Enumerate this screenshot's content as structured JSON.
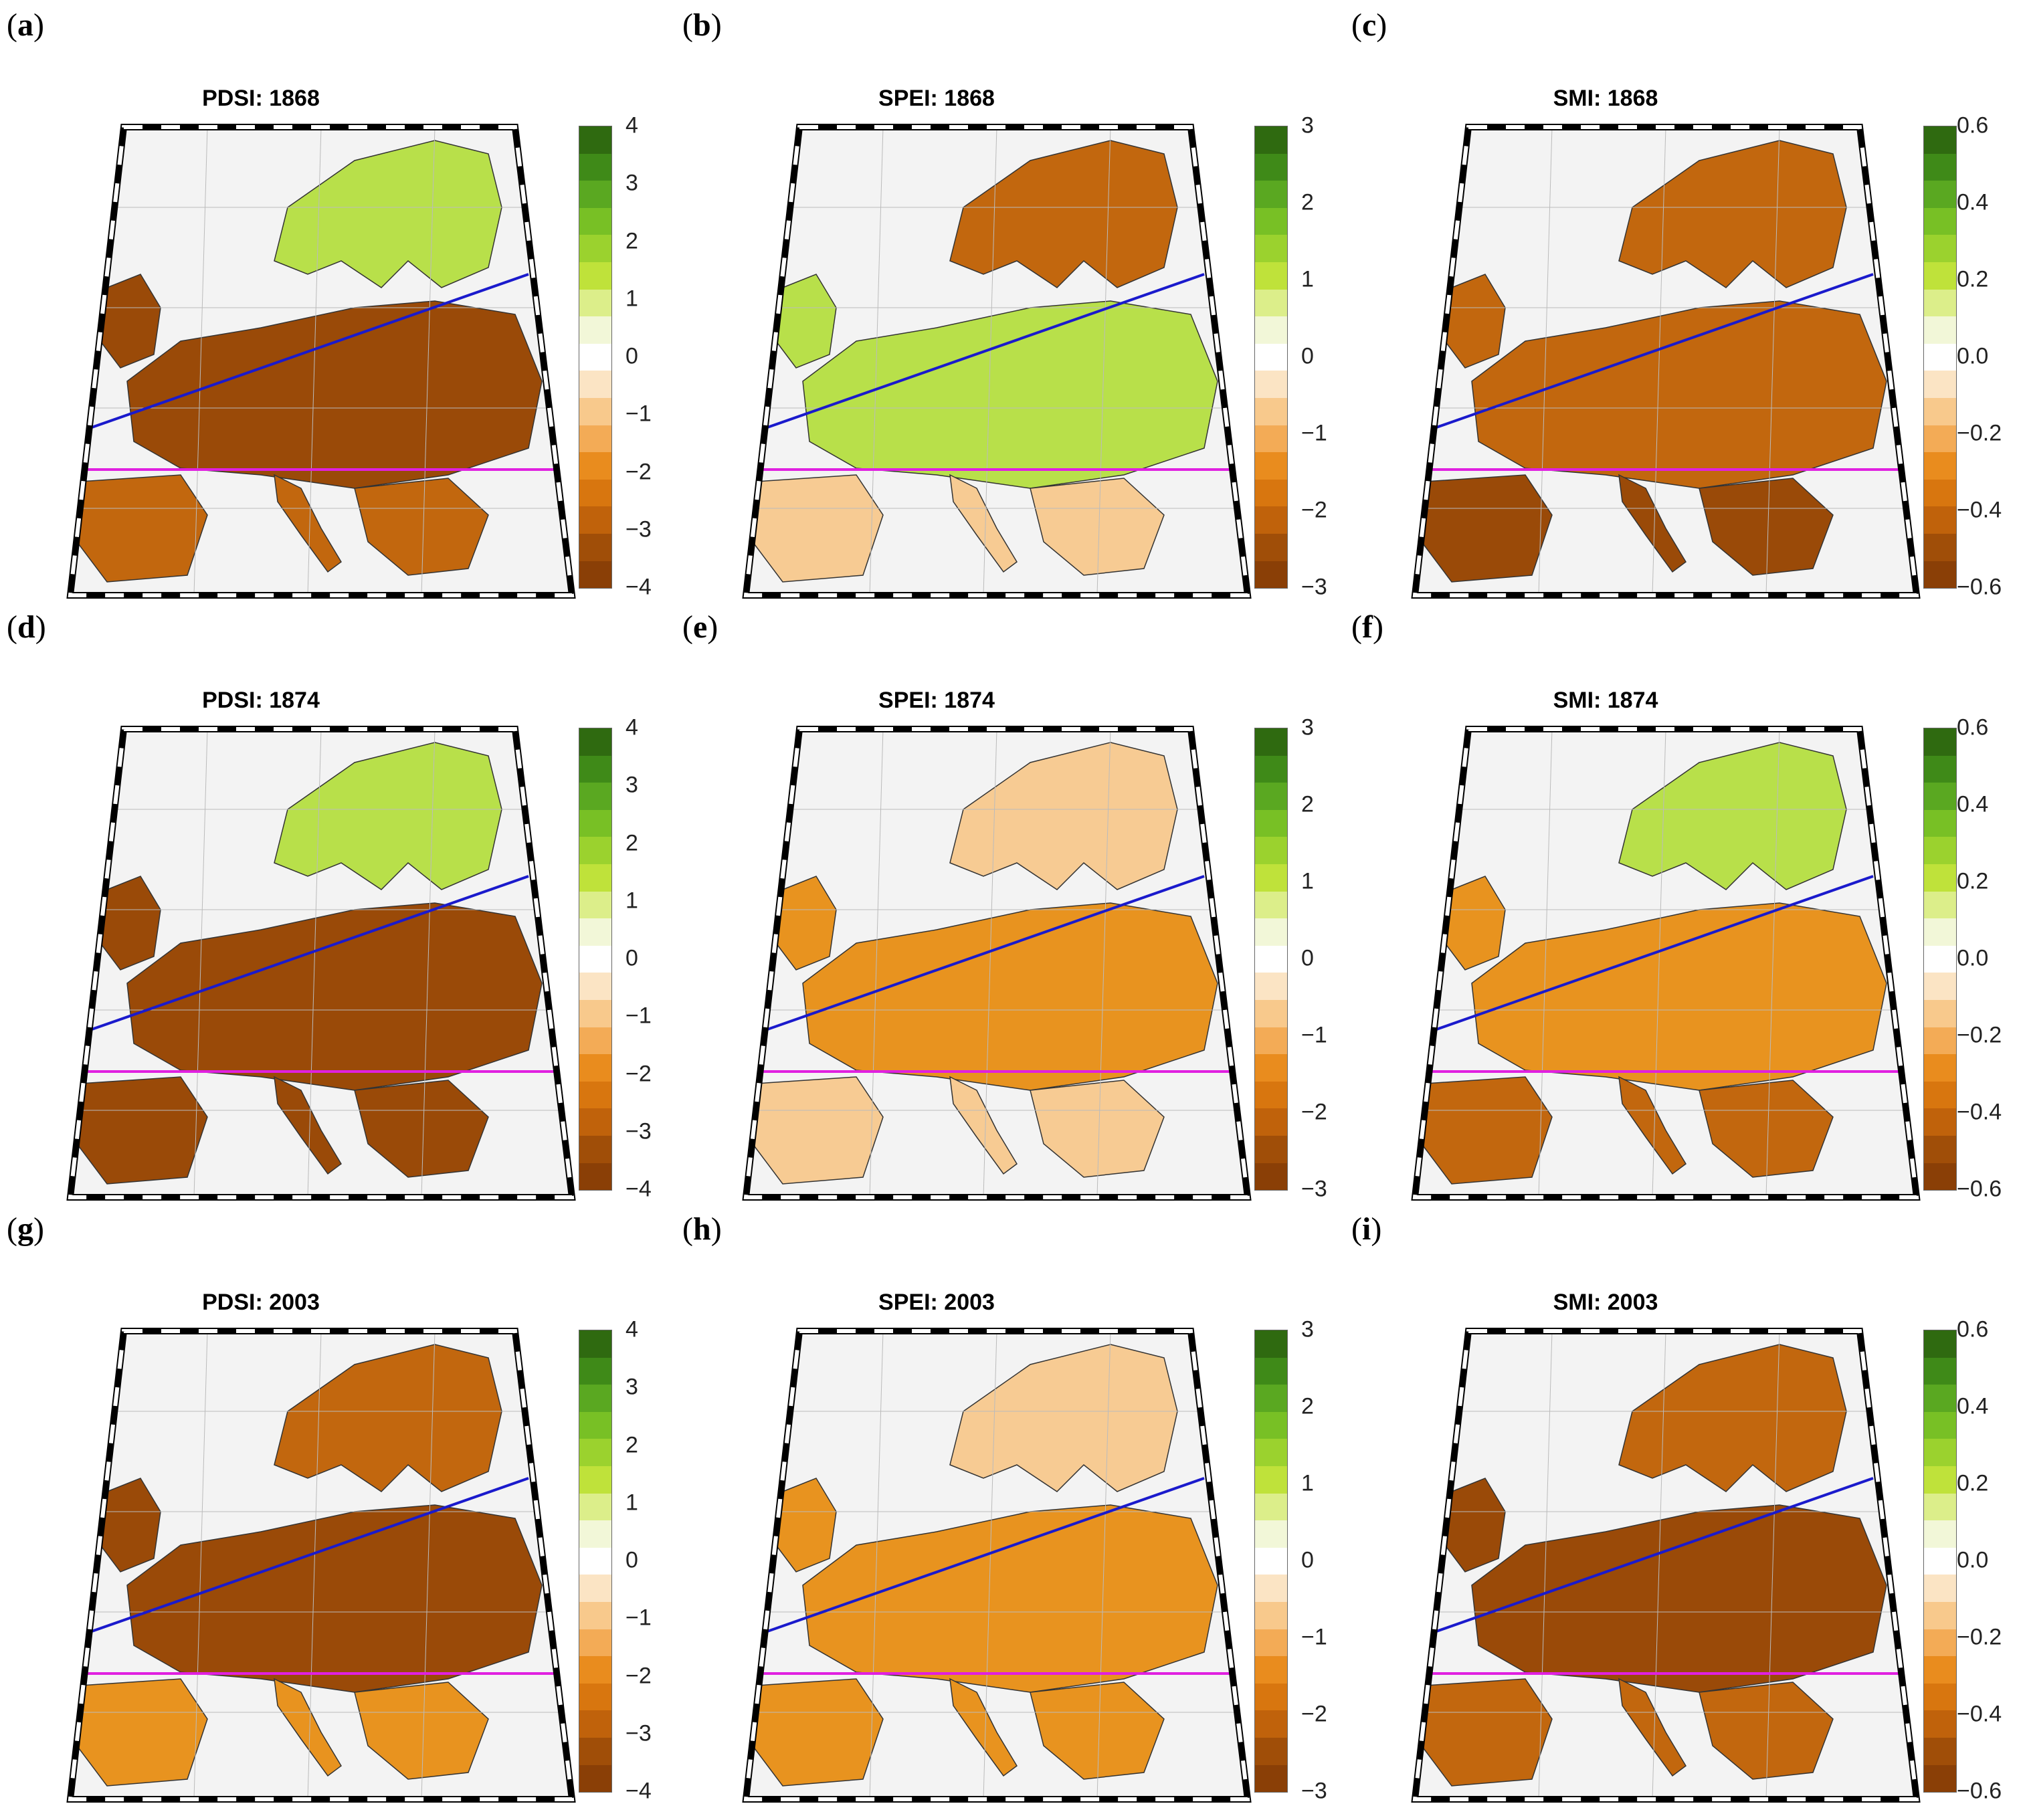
{
  "panels": [
    {
      "letter": "a",
      "title": "PDSI: 1868",
      "ticks": [
        "4",
        "3",
        "2",
        "1",
        "0",
        "−1",
        "−2",
        "−3",
        "−4"
      ]
    },
    {
      "letter": "b",
      "title": "SPEI: 1868",
      "ticks": [
        "3",
        "2",
        "1",
        "0",
        "−1",
        "−2",
        "−3"
      ]
    },
    {
      "letter": "c",
      "title": "SMI: 1868",
      "ticks": [
        "0.6",
        "0.4",
        "0.2",
        "0.0",
        "−0.2",
        "−0.4",
        "−0.6"
      ]
    },
    {
      "letter": "d",
      "title": "PDSI: 1874",
      "ticks": [
        "4",
        "3",
        "2",
        "1",
        "0",
        "−1",
        "−2",
        "−3",
        "−4"
      ]
    },
    {
      "letter": "e",
      "title": "SPEI: 1874",
      "ticks": [
        "3",
        "2",
        "1",
        "0",
        "−1",
        "−2",
        "−3"
      ]
    },
    {
      "letter": "f",
      "title": "SMI: 1874",
      "ticks": [
        "0.6",
        "0.4",
        "0.2",
        "0.0",
        "−0.2",
        "−0.4",
        "−0.6"
      ]
    },
    {
      "letter": "g",
      "title": "PDSI: 2003",
      "ticks": [
        "4",
        "3",
        "2",
        "1",
        "0",
        "−1",
        "−2",
        "−3",
        "−4"
      ]
    },
    {
      "letter": "h",
      "title": "SPEI: 2003",
      "ticks": [
        "3",
        "2",
        "1",
        "0",
        "−1",
        "−2",
        "−3"
      ]
    },
    {
      "letter": "i",
      "title": "SMI: 2003",
      "ticks": [
        "0.6",
        "0.4",
        "0.2",
        "0.0",
        "−0.2",
        "−0.4",
        "−0.6"
      ]
    }
  ],
  "colors": {
    "ramp": [
      "#2f6a10",
      "#3f8a18",
      "#5aa821",
      "#78c025",
      "#9bd22e",
      "#bfe23a",
      "#dcee8a",
      "#f2f7d8",
      "#ffffff",
      "#fbe4c4",
      "#f8c98c",
      "#f3ab56",
      "#e98c1e",
      "#d8760f",
      "#c0620b",
      "#a04e08",
      "#8a3f06"
    ],
    "land_gray": "#eeeeee",
    "dry": "#c2670e",
    "very_dry": "#9a4a08",
    "moderate": "#e8931f",
    "slight_dry": "#f7cb93",
    "wet": "#b8e04a",
    "north_line": "#1a1acc",
    "south_line": "#e020e0"
  },
  "patterns": [
    {
      "north": "wet",
      "central": "very_dry",
      "south": "dry"
    },
    {
      "north": "dry",
      "central": "wet",
      "south": "slight_dry"
    },
    {
      "north": "dry",
      "central": "dry",
      "south": "very_dry"
    },
    {
      "north": "wet",
      "central": "very_dry",
      "south": "very_dry"
    },
    {
      "north": "slight_dry",
      "central": "moderate",
      "south": "slight_dry"
    },
    {
      "north": "wet",
      "central": "moderate",
      "south": "dry"
    },
    {
      "north": "dry",
      "central": "very_dry",
      "south": "moderate"
    },
    {
      "north": "slight_dry",
      "central": "moderate",
      "south": "moderate"
    },
    {
      "north": "dry",
      "central": "very_dry",
      "south": "dry"
    }
  ]
}
